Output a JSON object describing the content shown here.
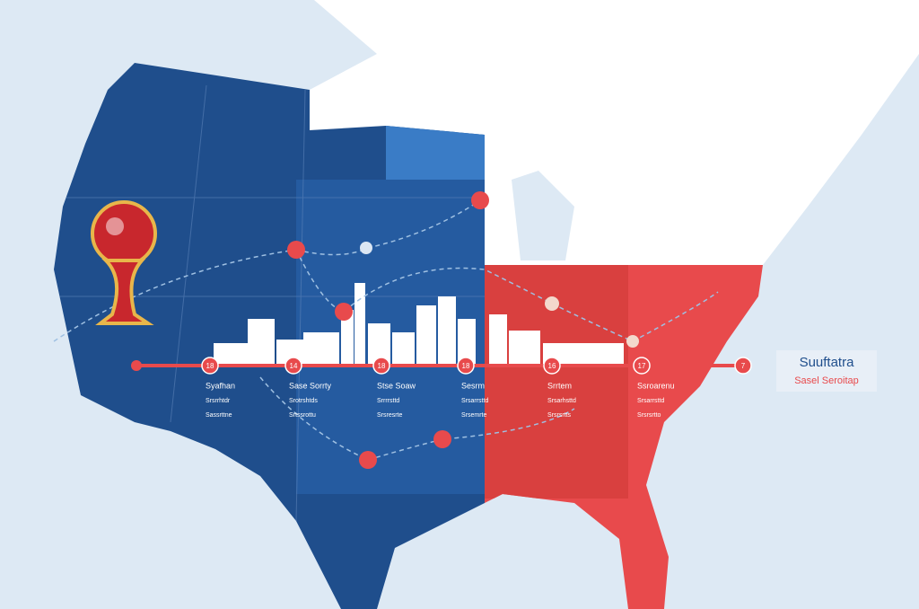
{
  "legend": {
    "title": "Suuftatra",
    "subtitle": "Sasel Seroitap"
  },
  "timeline": [
    {
      "number": "18",
      "lines": [
        "Syafhan",
        "Srsrrhtdr",
        "Sassrttne"
      ]
    },
    {
      "number": "14",
      "lines": [
        "Sase Sorrty",
        "Srotrshtds",
        "Srtssrottu"
      ]
    },
    {
      "number": "18",
      "lines": [
        "Stse Soaw",
        "Srrrrsttd",
        "Srsresrte"
      ]
    },
    {
      "number": "18",
      "lines": [
        "Sesrm",
        "Srsarrsttd",
        "Srsemrte"
      ]
    },
    {
      "number": "16",
      "lines": [
        "Srrtem",
        "Srsarhsttd",
        "Srsrsrtts"
      ]
    },
    {
      "number": "17",
      "lines": [
        "Ssroarenu",
        "Srsarrsttd",
        "Srsrsrtto"
      ]
    },
    {
      "number": "7",
      "lines": []
    }
  ]
}
